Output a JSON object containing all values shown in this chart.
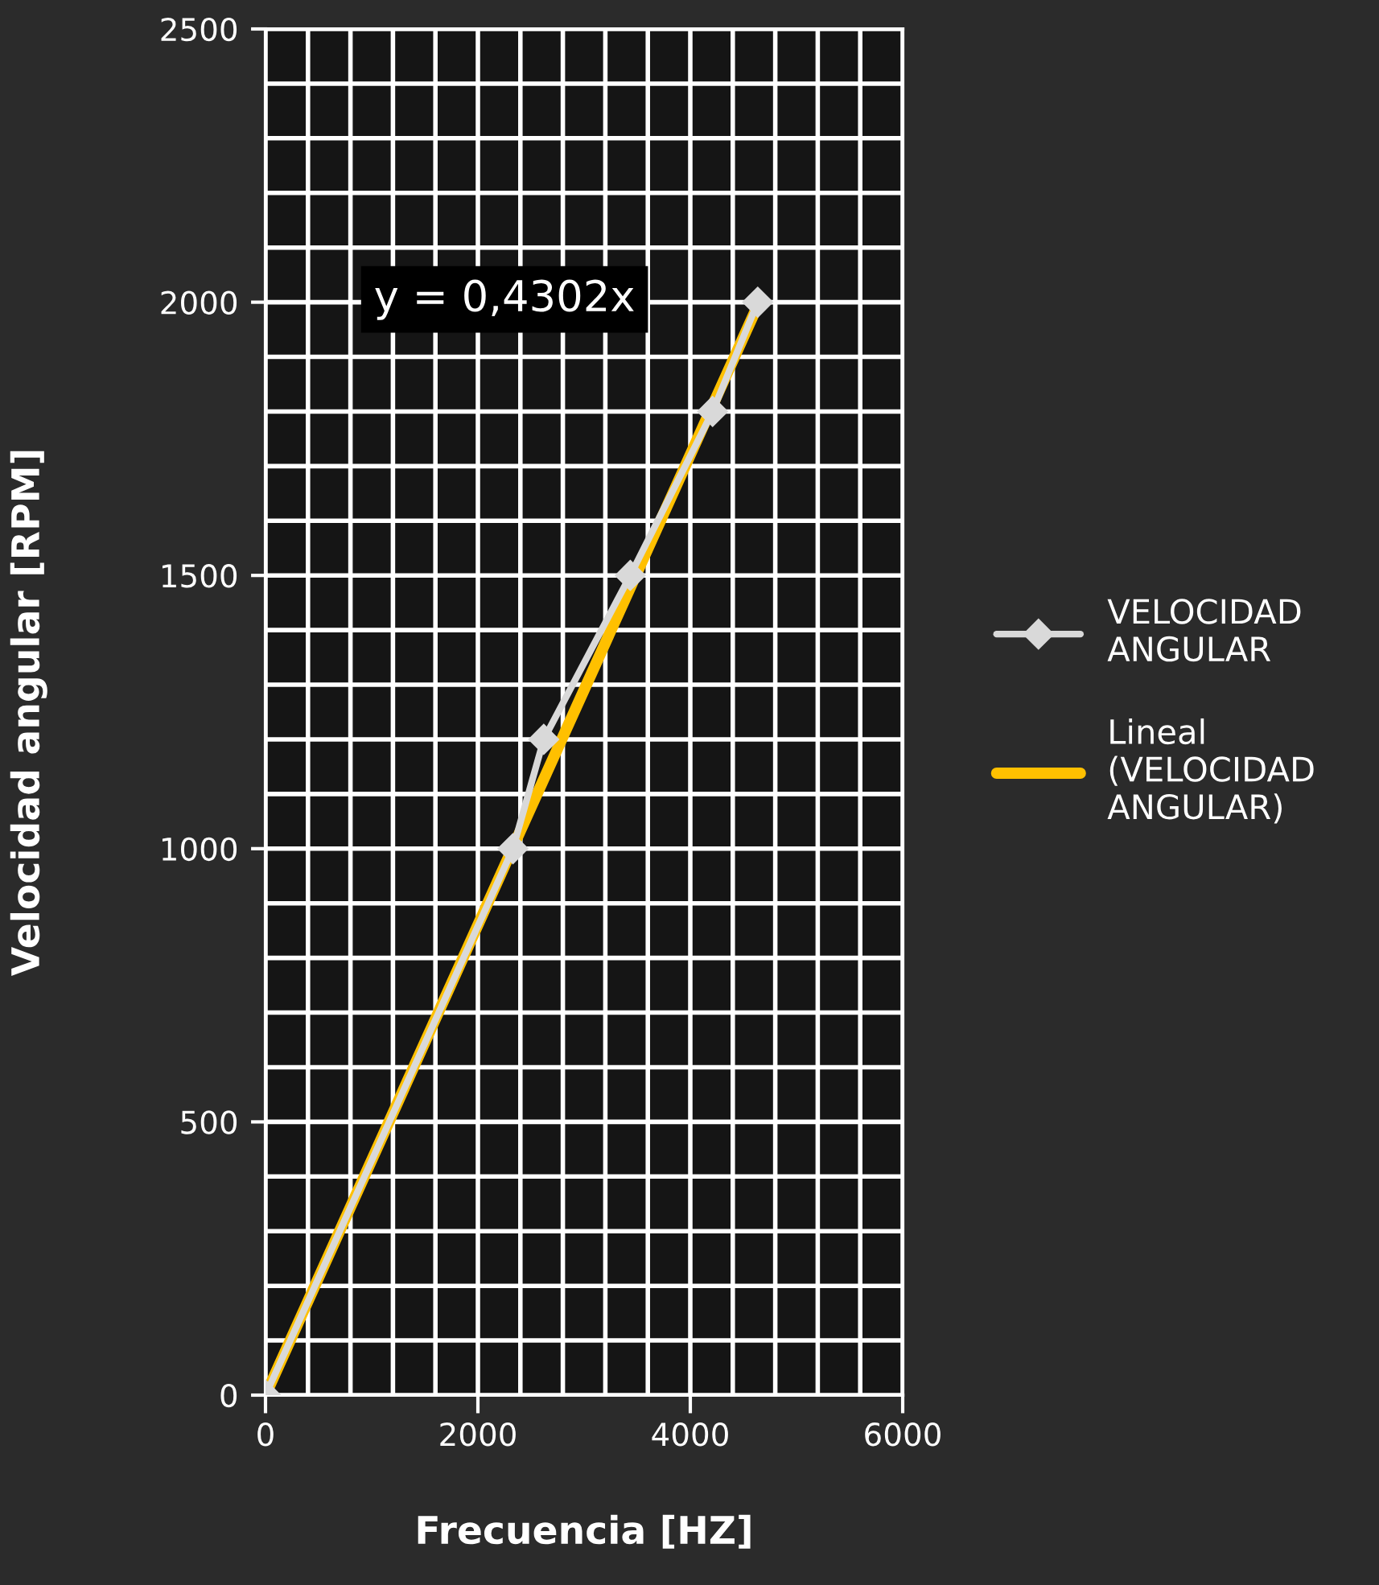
{
  "chart_data": {
    "type": "line",
    "xlabel": "Frecuencia [HZ]",
    "ylabel": "Velocidad angular [RPM]",
    "series": [
      {
        "name": "VELOCIDAD ANGULAR",
        "color": "#d9d9d9",
        "marker": "diamond",
        "x": [
          0,
          2330,
          2620,
          3435,
          4210,
          4635
        ],
        "values": [
          0,
          1000,
          1200,
          1500,
          1800,
          2000
        ]
      },
      {
        "name": "Lineal (VELOCIDAD ANGULAR)",
        "color": "#ffc000",
        "marker": "none",
        "x": [
          0,
          4635
        ],
        "values": [
          0,
          1994
        ]
      }
    ],
    "xlim": [
      0,
      6000
    ],
    "ylim": [
      0,
      2500
    ],
    "xticks": [
      0,
      {
        "value": 400,
        "label": null
      },
      {
        "value": 800,
        "label": null
      },
      {
        "value": 1200,
        "label": null
      },
      {
        "value": 1600,
        "label": null
      },
      2000,
      {
        "value": 2400,
        "label": null
      },
      {
        "value": 2800,
        "label": null
      },
      {
        "value": 3200,
        "label": null
      },
      {
        "value": 3600,
        "label": null
      },
      4000,
      {
        "value": 4400,
        "label": null
      },
      {
        "value": 4800,
        "label": null
      },
      {
        "value": 5200,
        "label": null
      },
      {
        "value": 5600,
        "label": null
      },
      6000
    ],
    "yticks": [
      0,
      {
        "value": 100,
        "label": null
      },
      {
        "value": 200,
        "label": null
      },
      {
        "value": 300,
        "label": null
      },
      {
        "value": 400,
        "label": null
      },
      500,
      {
        "value": 600,
        "label": null
      },
      {
        "value": 700,
        "label": null
      },
      {
        "value": 800,
        "label": null
      },
      {
        "value": 900,
        "label": null
      },
      1000,
      {
        "value": 1100,
        "label": null
      },
      {
        "value": 1200,
        "label": null
      },
      {
        "value": 1300,
        "label": null
      },
      {
        "value": 1400,
        "label": null
      },
      1500,
      {
        "value": 1600,
        "label": null
      },
      {
        "value": 1700,
        "label": null
      },
      {
        "value": 1800,
        "label": null
      },
      {
        "value": 1900,
        "label": null
      },
      2000,
      {
        "value": 2100,
        "label": null
      },
      {
        "value": 2200,
        "label": null
      },
      {
        "value": 2300,
        "label": null
      },
      {
        "value": 2400,
        "label": null
      },
      2500
    ],
    "annotations": [
      "y = 0,4302x"
    ],
    "grid": true,
    "legend": "right",
    "line_style": "solid"
  }
}
